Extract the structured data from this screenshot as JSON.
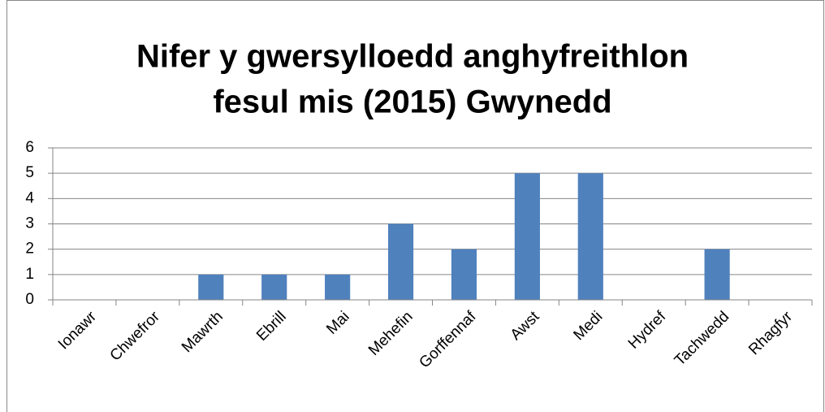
{
  "chart_data": {
    "type": "bar",
    "title": [
      "Nifer y gwersylloedd anghyfreithlon",
      "fesul mis (2015) Gwynedd"
    ],
    "categories": [
      "Ionawr",
      "Chwefror",
      "Mawrth",
      "Ebrill",
      "Mai",
      "Mehefin",
      "Gorffennaf",
      "Awst",
      "Medi",
      "Hydref",
      "Tachwedd",
      "Rhagfyr"
    ],
    "values": [
      0,
      0,
      1,
      1,
      1,
      3,
      2,
      5,
      5,
      0,
      2,
      0
    ],
    "color": "#4f81bd",
    "ylim": [
      0,
      6
    ],
    "yticks": [
      0,
      1,
      2,
      3,
      4,
      5,
      6
    ],
    "grid": true
  }
}
